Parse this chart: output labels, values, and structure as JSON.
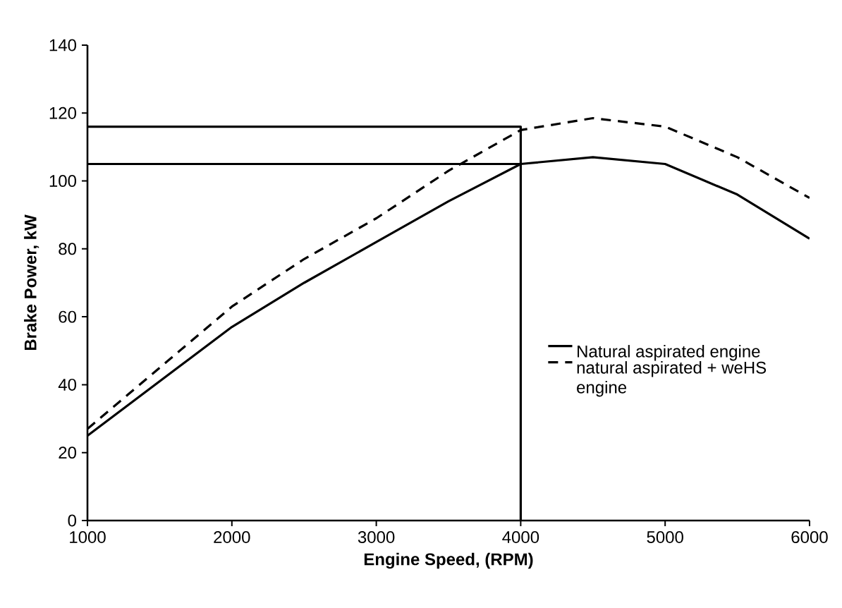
{
  "chart_data": {
    "type": "line",
    "xlabel": "Engine Speed, (RPM)",
    "ylabel": "Brake Power, kW",
    "xlim": [
      1000,
      6000
    ],
    "ylim": [
      0,
      140
    ],
    "xticks": [
      1000,
      2000,
      3000,
      4000,
      5000,
      6000
    ],
    "yticks": [
      0,
      20,
      40,
      60,
      80,
      100,
      120,
      140
    ],
    "grid": false,
    "legend": "right",
    "marker": "none",
    "series": [
      {
        "name": "Natural aspirated engine",
        "color": "#000000",
        "line_style": "solid",
        "x": [
          1000,
          1500,
          2000,
          2500,
          3000,
          3500,
          4000,
          4500,
          5000,
          5500,
          6000
        ],
        "values": [
          25,
          41,
          57,
          70,
          82,
          94,
          105,
          107,
          105,
          96,
          83
        ]
      },
      {
        "name": "natural aspirated + weHS engine",
        "color": "#000000",
        "line_style": "dashed",
        "x": [
          1000,
          1500,
          2000,
          2500,
          3000,
          3500,
          4000,
          4500,
          5000,
          5500,
          6000
        ],
        "values": [
          27,
          45,
          63,
          77,
          89,
          103,
          115,
          118.5,
          116,
          107,
          95
        ]
      },
      {
        "color": "#000000",
        "line_style": "solid",
        "x": [
          1000,
          4000,
          4000
        ],
        "values": [
          116,
          116,
          0
        ]
      },
      {
        "color": "#000000",
        "line_style": "solid",
        "x": [
          1000,
          4000
        ],
        "values": [
          105,
          105
        ]
      }
    ]
  }
}
